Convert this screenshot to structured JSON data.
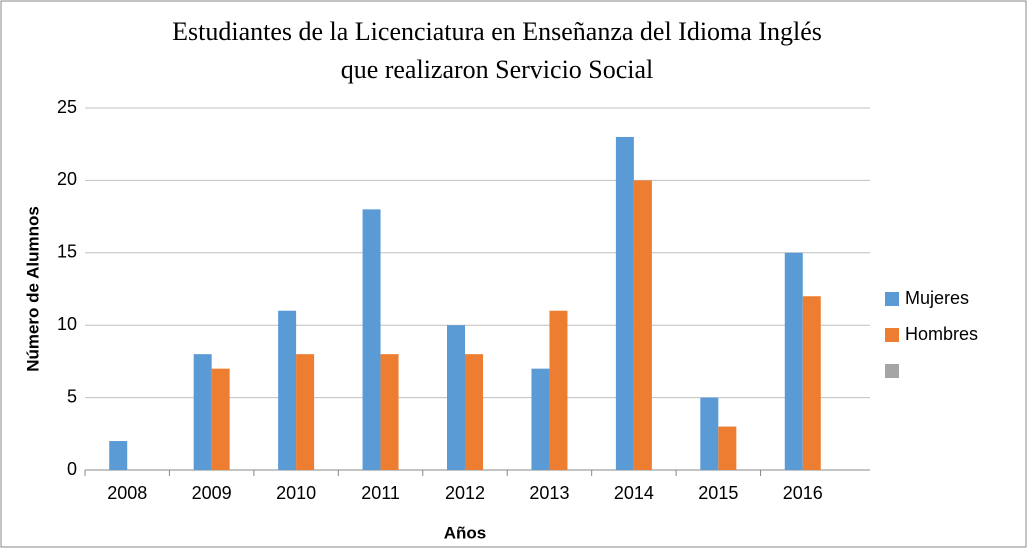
{
  "chart_data": {
    "type": "bar",
    "title": [
      "Estudiantes de la Licenciatura en Enseñanza del Idioma Inglés",
      "que realizaron Servicio Social"
    ],
    "x_label": "Años",
    "y_label": "Número de Alumnos",
    "categories": [
      "2008",
      "2009",
      "2010",
      "2011",
      "2012",
      "2013",
      "2014",
      "2015",
      "2016"
    ],
    "series": [
      {
        "name": "Mujeres",
        "color": "#5b9bd5",
        "values": [
          2,
          8,
          11,
          18,
          10,
          7,
          23,
          5,
          15
        ]
      },
      {
        "name": "Hombres",
        "color": "#ed7d31",
        "values": [
          0,
          7,
          8,
          8,
          8,
          11,
          20,
          3,
          12
        ]
      }
    ],
    "ylim": [
      0,
      25
    ],
    "yticks": [
      0,
      5,
      10,
      15,
      20,
      25
    ],
    "grid": true,
    "legend": "right"
  }
}
